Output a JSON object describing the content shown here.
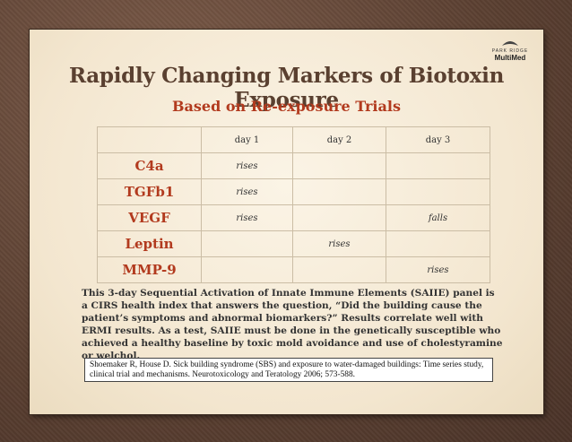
{
  "logo": {
    "top_text": "PARK RIDGE",
    "brand": "MultiMed"
  },
  "title": "Rapidly Changing Markers of Biotoxin Exposure",
  "subtitle": "Based on Re-exposure Trials",
  "table": {
    "headers": [
      "",
      "day 1",
      "day 2",
      "day 3"
    ],
    "rows": [
      {
        "marker": "C4a",
        "day1": "rises",
        "day2": "",
        "day3": ""
      },
      {
        "marker": "TGFb1",
        "day1": "rises",
        "day2": "",
        "day3": ""
      },
      {
        "marker": "VEGF",
        "day1": "rises",
        "day2": "",
        "day3": "falls"
      },
      {
        "marker": "Leptin",
        "day1": "",
        "day2": "rises",
        "day3": ""
      },
      {
        "marker": "MMP-9",
        "day1": "",
        "day2": "",
        "day3": "rises"
      }
    ]
  },
  "body_text": "This 3-day Sequential Activation of Innate Immune Elements (SAIIE) panel is a CIRS health index that answers the question, “Did the building cause the patient’s symptoms and abnormal biomarkers?” Results correlate well with ERMI results. As a test, SAIIE must be done in the genetically susceptible who achieved a healthy baseline by toxic mold avoidance and use of cholestyramine or welchol.",
  "reference": "Shoemaker R, House D. Sick building syndrome (SBS) and exposure to water-damaged buildings: Time series study, clinical trial and mechanisms. Neurotoxicology and Teratology 2006; 573-588."
}
